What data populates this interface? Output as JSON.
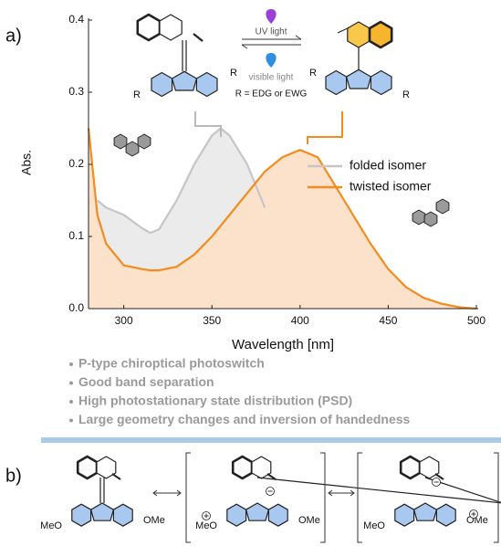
{
  "labels": {
    "panel_a": "a)",
    "panel_b": "b)"
  },
  "chart_data": {
    "type": "line",
    "x_label": "Wavelength [nm]",
    "y_label": "Abs.",
    "x": [
      280,
      285,
      290,
      300,
      310,
      315,
      320,
      330,
      340,
      350,
      355,
      360,
      370,
      380,
      390,
      400,
      410,
      420,
      430,
      440,
      450,
      460,
      470,
      480,
      490,
      500
    ],
    "series": [
      {
        "name": "folded isomer",
        "color": "#c6c6c6",
        "fill": "#ebebeb",
        "values": [
          null,
          0.15,
          0.14,
          0.13,
          0.112,
          0.105,
          0.11,
          0.15,
          0.2,
          0.24,
          0.25,
          0.24,
          0.2,
          0.14,
          null,
          null,
          null,
          null,
          null,
          null,
          null,
          null,
          null,
          null,
          null,
          null
        ]
      },
      {
        "name": "twisted isomer",
        "color": "#f28c1e",
        "fill": "#fde2cb",
        "values": [
          0.25,
          0.13,
          0.09,
          0.06,
          0.055,
          0.053,
          0.053,
          0.058,
          0.075,
          0.1,
          0.115,
          0.13,
          0.16,
          0.19,
          0.21,
          0.22,
          0.21,
          0.17,
          0.13,
          0.09,
          0.055,
          0.03,
          0.015,
          0.007,
          0.002,
          0
        ]
      }
    ],
    "xlim": [
      280,
      500
    ],
    "ylim": [
      0,
      0.4
    ],
    "xticks": [
      300,
      350,
      400,
      450,
      500
    ],
    "yticks": [
      {
        "value": 0,
        "label": "0.0"
      },
      0.1,
      0.2,
      0.3,
      0.4
    ],
    "area": true,
    "legend": "right"
  },
  "scheme_a": {
    "forward": "UV light",
    "backward": "visible light",
    "note": "R = EDG or EWG",
    "substituents": [
      "R",
      "R",
      "R",
      "R"
    ]
  },
  "bullets": [
    "P-type chiroptical photoswitch",
    "Good band separation",
    "High photostationary state distribution (PSD)",
    "Large geometry changes and inversion of handedness"
  ],
  "scheme_b": {
    "substituents": [
      [
        "MeO",
        "OMe"
      ],
      [
        "MeO",
        "OMe"
      ],
      [
        "MeO",
        "OMe"
      ]
    ]
  }
}
